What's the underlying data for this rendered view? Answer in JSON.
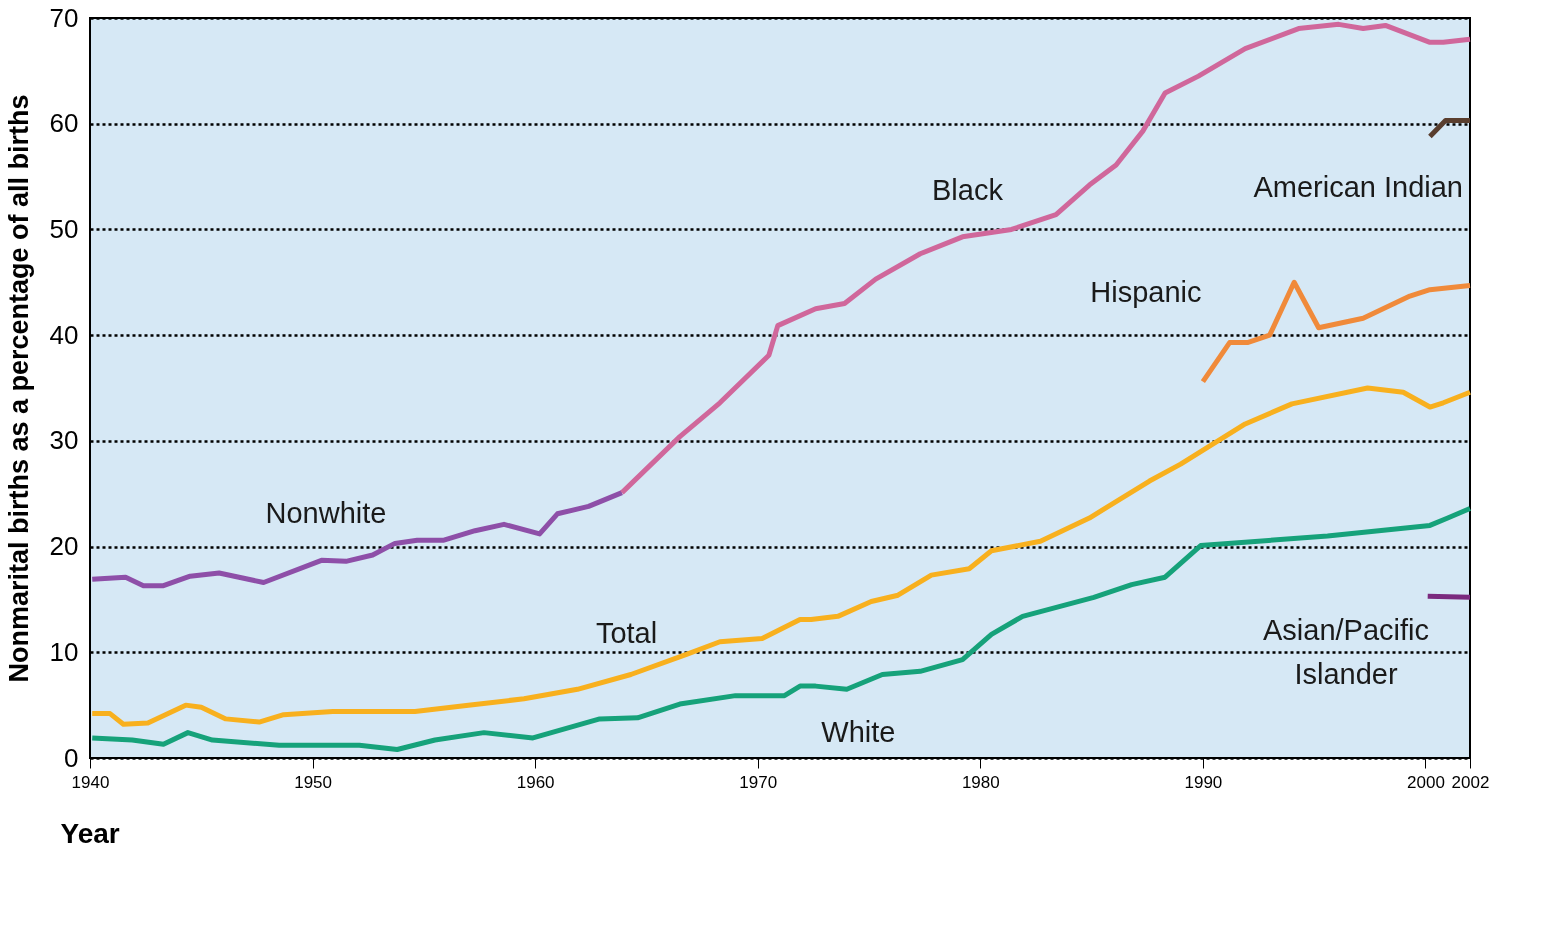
{
  "chart_data": {
    "type": "line",
    "xlabel": "Year",
    "ylabel": "Nonmarital births as a percentage of all births",
    "xlim": [
      1940,
      2002
    ],
    "xticks": [
      1940,
      1950,
      1960,
      1970,
      1980,
      1990,
      2000,
      2002
    ],
    "ylim": [
      0,
      70
    ],
    "yticks": [
      0,
      10,
      20,
      30,
      40,
      50,
      60,
      70
    ],
    "grid": "y",
    "series": [
      {
        "name": "Nonwhite",
        "color": "#8e4fa8",
        "x": [
          1940.1,
          1941.6,
          1942.4,
          1943.3,
          1944.5,
          1945.8,
          1947.8,
          1950.4,
          1951.5,
          1952.7,
          1953.7,
          1954.7,
          1955.9,
          1957.3,
          1958.6,
          1960.2,
          1961.0,
          1962.4,
          1963.9
        ],
        "values": [
          16.9,
          17.1,
          16.3,
          16.3,
          17.2,
          17.5,
          16.6,
          18.7,
          18.6,
          19.2,
          20.3,
          20.6,
          20.6,
          21.5,
          22.1,
          21.2,
          23.1,
          23.8,
          25.1
        ]
      },
      {
        "name": "Black",
        "color": "#d0679b",
        "x": [
          1963.9,
          1966.5,
          1968.3,
          1970.5,
          1970.9,
          1972.6,
          1973.9,
          1975.3,
          1977.3,
          1979.2,
          1981.4,
          1983.4,
          1984.9,
          1986.1,
          1987.3,
          1988.3,
          1989.8,
          1991.9,
          1994.3,
          1996.1,
          1997.2,
          1998.2,
          2000.2,
          2000.8,
          2002
        ],
        "values": [
          25.1,
          30.4,
          33.6,
          38.1,
          40.9,
          42.5,
          43.0,
          45.3,
          47.7,
          49.3,
          50.0,
          51.4,
          54.2,
          56.1,
          59.3,
          62.9,
          64.5,
          67.1,
          69.0,
          69.4,
          69.0,
          69.3,
          67.7,
          67.7,
          68.0
        ]
      },
      {
        "name": "Total",
        "color": "#f8b01e",
        "x": [
          1940.1,
          1940.9,
          1941.5,
          1942.6,
          1944.3,
          1945.0,
          1946.1,
          1947.6,
          1948.7,
          1950.9,
          1954.6,
          1957.0,
          1959.5,
          1961.9,
          1964.3,
          1966.8,
          1968.3,
          1970.2,
          1971.9,
          1972.4,
          1973.6,
          1975.1,
          1976.3,
          1977.8,
          1979.5,
          1980.5,
          1982.7,
          1984.9,
          1987.6,
          1989.0,
          1991.9,
          1994.0,
          1997.4,
          1999.0,
          2000.2,
          2000.8,
          2002
        ],
        "values": [
          4.2,
          4.2,
          3.2,
          3.3,
          5.0,
          4.8,
          3.7,
          3.4,
          4.1,
          4.4,
          4.4,
          5.0,
          5.6,
          6.5,
          7.9,
          9.8,
          11.0,
          11.3,
          13.1,
          13.1,
          13.4,
          14.8,
          15.4,
          17.3,
          17.9,
          19.6,
          20.5,
          22.7,
          26.2,
          27.8,
          31.6,
          33.5,
          35.0,
          34.6,
          33.2,
          33.6,
          34.6
        ]
      },
      {
        "name": "White",
        "color": "#16a27a",
        "x": [
          1940.1,
          1941.9,
          1943.3,
          1944.4,
          1945.5,
          1948.5,
          1952.1,
          1953.8,
          1955.5,
          1957.7,
          1959.9,
          1962.9,
          1964.6,
          1966.5,
          1969.0,
          1971.2,
          1971.9,
          1972.6,
          1974.0,
          1975.6,
          1977.3,
          1979.2,
          1980.5,
          1981.9,
          1985.1,
          1986.8,
          1988.3,
          1989.9,
          1995.6,
          2000.2,
          2001.0,
          2002
        ],
        "values": [
          1.9,
          1.7,
          1.3,
          2.4,
          1.7,
          1.2,
          1.2,
          0.8,
          1.7,
          2.4,
          1.9,
          3.7,
          3.8,
          5.1,
          5.9,
          5.9,
          6.8,
          6.8,
          6.5,
          7.9,
          8.2,
          9.3,
          11.7,
          13.4,
          15.2,
          16.4,
          17.1,
          20.1,
          21.0,
          22.0,
          22.7,
          23.6
        ]
      },
      {
        "name": "Hispanic",
        "color": "#f08a3a",
        "x": [
          1990.0,
          1991.2,
          1992.0,
          1993.0,
          1994.1,
          1995.2,
          1997.2,
          1999.3,
          2000.2,
          2002
        ],
        "values": [
          35.6,
          39.3,
          39.3,
          40.0,
          45.0,
          40.7,
          41.6,
          43.7,
          44.3,
          44.7
        ]
      },
      {
        "name": "American Indian",
        "color": "#5a3e2e",
        "x": [
          2000.2,
          2000.9,
          2002
        ],
        "values": [
          58.8,
          60.3,
          60.3
        ]
      },
      {
        "name": "Asian/Pacific Islander",
        "color": "#7b2a7e",
        "x": [
          2000.1,
          2002
        ],
        "values": [
          15.3,
          15.2
        ]
      }
    ]
  }
}
